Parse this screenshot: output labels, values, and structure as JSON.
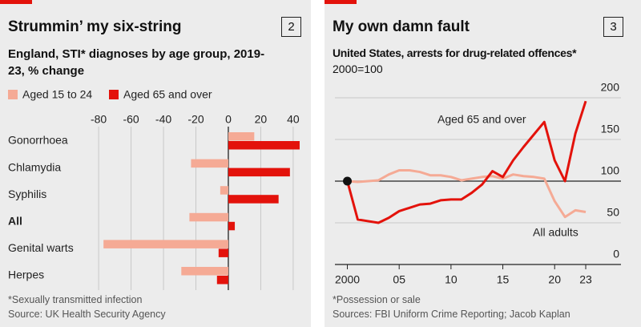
{
  "chart_data": [
    {
      "type": "bar",
      "orientation": "horizontal",
      "number": 2,
      "title": "Strummin’ my six-string",
      "subtitle": "England, STI* diagnoses by age group, 2019-23, % change",
      "categories": [
        "Gonorrhoea",
        "Chlamydia",
        "Syphilis",
        "All",
        "Genital warts",
        "Herpes"
      ],
      "series": [
        {
          "name": "Aged 15 to 24",
          "color": "#f5aa95",
          "values": [
            16,
            -23,
            -5,
            -24,
            -77,
            -29
          ]
        },
        {
          "name": "Aged 65 and over",
          "color": "#e3120b",
          "values": [
            44,
            38,
            31,
            4,
            -6,
            -7
          ]
        }
      ],
      "xlim": [
        -85,
        45
      ],
      "xticks": [
        -80,
        -60,
        -40,
        -20,
        0,
        20,
        40
      ],
      "grid": true,
      "legend": "top-left",
      "footnote": "*Sexually transmitted infection",
      "source": "Source: UK Health Security Agency"
    },
    {
      "type": "line",
      "number": 3,
      "title": "My own damn fault",
      "subtitle": "United States, arrests for drug-related offences*",
      "y_label": "2000=100",
      "x": [
        2000,
        2001,
        2002,
        2003,
        2004,
        2005,
        2006,
        2007,
        2008,
        2009,
        2010,
        2011,
        2012,
        2013,
        2014,
        2015,
        2016,
        2017,
        2018,
        2019,
        2020,
        2021,
        2022,
        2023
      ],
      "series": [
        {
          "name": "All adults",
          "color": "#f5aa95",
          "values": [
            100,
            99,
            100,
            101,
            108,
            113,
            113,
            111,
            107,
            107,
            105,
            101,
            103,
            105,
            106,
            103,
            108,
            106,
            105,
            103,
            76,
            57,
            65,
            63
          ]
        },
        {
          "name": "Aged 65 and over",
          "color": "#e3120b",
          "values": [
            100,
            54,
            52,
            50,
            56,
            64,
            68,
            72,
            73,
            77,
            78,
            78,
            86,
            96,
            112,
            105,
            125,
            141,
            156,
            171,
            125,
            100,
            157,
            196
          ]
        }
      ],
      "xlim": [
        1998.8,
        2026.4
      ],
      "ylim": [
        0,
        200
      ],
      "xticks": [
        {
          "value": 2000,
          "label": "2000"
        },
        {
          "value": 2005,
          "label": "05"
        },
        {
          "value": 2010,
          "label": "10"
        },
        {
          "value": 2015,
          "label": "15"
        },
        {
          "value": 2020,
          "label": "20"
        },
        {
          "value": 2023,
          "label": "23"
        }
      ],
      "yticks": [
        0,
        50,
        100,
        150,
        200
      ],
      "grid": true,
      "footnote": "*Possession or sale",
      "source": "Sources: FBI Uniform Crime Reporting; Jacob Kaplan"
    }
  ]
}
